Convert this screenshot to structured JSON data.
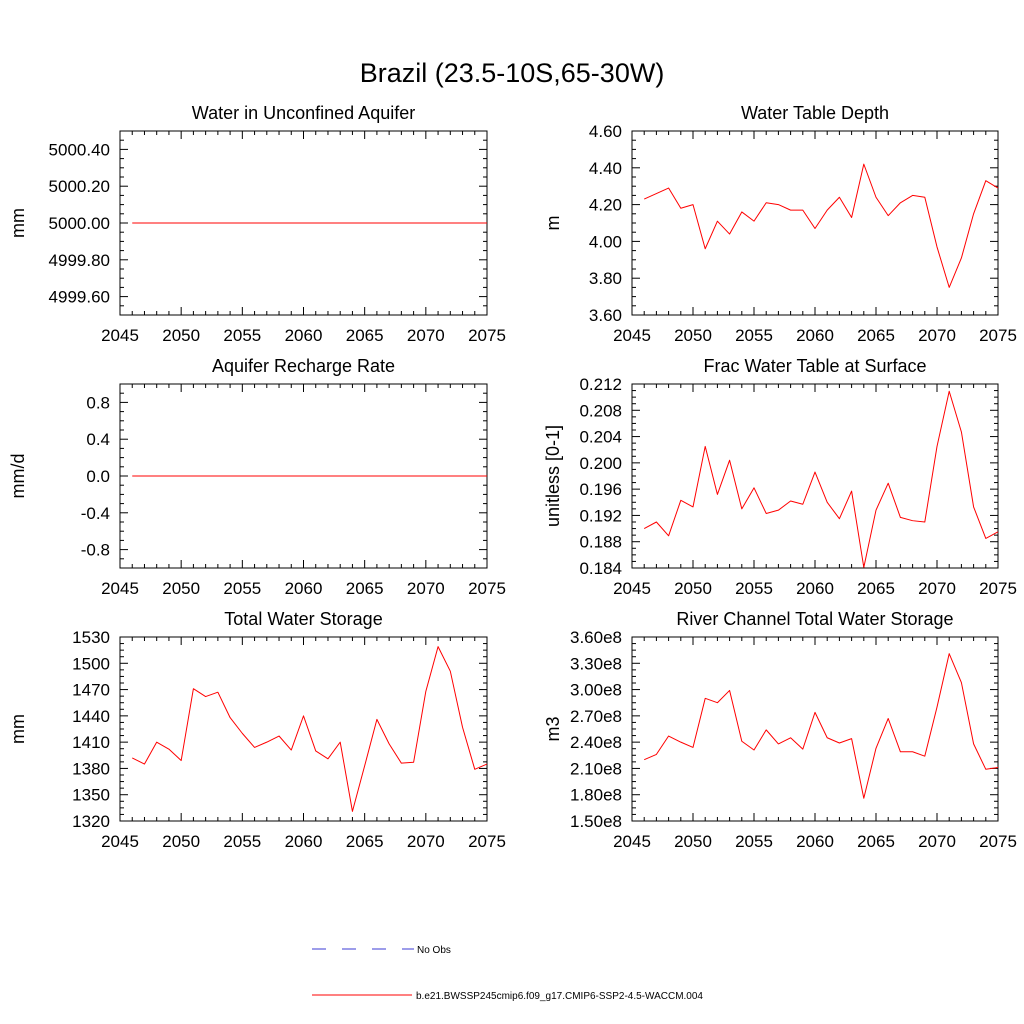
{
  "title": "Brazil (23.5-10S,65-30W)",
  "colors": {
    "model": "#ff0000",
    "obs": "#3b3bd6",
    "axis": "#000000"
  },
  "legend": {
    "entries": [
      {
        "label": "No Obs",
        "style": "dashed",
        "color": "#3b3bd6"
      },
      {
        "label": "b.e21.BWSSP245cmip6.f09_g17.CMIP6-SSP2-4.5-WACCM.004",
        "style": "solid",
        "color": "#ff0000"
      }
    ]
  },
  "chart_data": [
    {
      "type": "line",
      "title": "Water in Unconfined Aquifer",
      "xlabel": "",
      "ylabel": "mm",
      "xlim": [
        2045,
        2075
      ],
      "ylim": [
        4999.5,
        5000.5
      ],
      "xticks": [
        2045,
        2050,
        2055,
        2060,
        2065,
        2070,
        2075
      ],
      "xtick_labels": [
        "2045",
        "2050",
        "2055",
        "2060",
        "2065",
        "2070",
        "2075"
      ],
      "yticks": [
        4999.6,
        4999.8,
        5000.0,
        5000.2,
        5000.4
      ],
      "ytick_labels": [
        "4999.60",
        "4999.80",
        "5000.00",
        "5000.20",
        "5000.40"
      ],
      "series": [
        {
          "name": "b.e21.BWSSP245cmip6.f09_g17.CMIP6-SSP2-4.5-WACCM.004",
          "x": [
            2046,
            2075
          ],
          "y": [
            5000.0,
            5000.0
          ]
        }
      ]
    },
    {
      "type": "line",
      "title": "Water Table Depth",
      "xlabel": "",
      "ylabel": "m",
      "xlim": [
        2045,
        2075
      ],
      "ylim": [
        3.6,
        4.6
      ],
      "xticks": [
        2045,
        2050,
        2055,
        2060,
        2065,
        2070,
        2075
      ],
      "xtick_labels": [
        "2045",
        "2050",
        "2055",
        "2060",
        "2065",
        "2070",
        "2075"
      ],
      "yticks": [
        3.6,
        3.8,
        4.0,
        4.2,
        4.4,
        4.6
      ],
      "ytick_labels": [
        "3.60",
        "3.80",
        "4.00",
        "4.20",
        "4.40",
        "4.60"
      ],
      "series": [
        {
          "name": "b.e21.BWSSP245cmip6.f09_g17.CMIP6-SSP2-4.5-WACCM.004",
          "x": [
            2046,
            2047,
            2048,
            2049,
            2050,
            2051,
            2052,
            2053,
            2054,
            2055,
            2056,
            2057,
            2058,
            2059,
            2060,
            2061,
            2062,
            2063,
            2064,
            2065,
            2066,
            2067,
            2068,
            2069,
            2070,
            2071,
            2072,
            2073,
            2074,
            2075
          ],
          "y": [
            4.23,
            4.26,
            4.29,
            4.18,
            4.2,
            3.96,
            4.11,
            4.04,
            4.16,
            4.11,
            4.21,
            4.2,
            4.17,
            4.17,
            4.07,
            4.17,
            4.24,
            4.13,
            4.42,
            4.24,
            4.14,
            4.21,
            4.25,
            4.24,
            3.97,
            3.75,
            3.91,
            4.15,
            4.33,
            4.29
          ]
        }
      ]
    },
    {
      "type": "line",
      "title": "Aquifer Recharge Rate",
      "xlabel": "",
      "ylabel": "mm/d",
      "xlim": [
        2045,
        2075
      ],
      "ylim": [
        -1.0,
        1.0
      ],
      "xticks": [
        2045,
        2050,
        2055,
        2060,
        2065,
        2070,
        2075
      ],
      "xtick_labels": [
        "2045",
        "2050",
        "2055",
        "2060",
        "2065",
        "2070",
        "2075"
      ],
      "yticks": [
        -0.8,
        -0.4,
        0.0,
        0.4,
        0.8
      ],
      "ytick_labels": [
        "-0.8",
        "-0.4",
        "0.0",
        "0.4",
        "0.8"
      ],
      "series": [
        {
          "name": "b.e21.BWSSP245cmip6.f09_g17.CMIP6-SSP2-4.5-WACCM.004",
          "x": [
            2046,
            2075
          ],
          "y": [
            0.0,
            0.0
          ]
        }
      ]
    },
    {
      "type": "line",
      "title": "Frac Water Table at Surface",
      "xlabel": "",
      "ylabel": "unitless [0-1]",
      "xlim": [
        2045,
        2075
      ],
      "ylim": [
        0.184,
        0.212
      ],
      "xticks": [
        2045,
        2050,
        2055,
        2060,
        2065,
        2070,
        2075
      ],
      "xtick_labels": [
        "2045",
        "2050",
        "2055",
        "2060",
        "2065",
        "2070",
        "2075"
      ],
      "yticks": [
        0.184,
        0.188,
        0.192,
        0.196,
        0.2,
        0.204,
        0.208,
        0.212
      ],
      "ytick_labels": [
        "0.184",
        "0.188",
        "0.192",
        "0.196",
        "0.200",
        "0.204",
        "0.208",
        "0.212"
      ],
      "series": [
        {
          "name": "b.e21.BWSSP245cmip6.f09_g17.CMIP6-SSP2-4.5-WACCM.004",
          "x": [
            2046,
            2047,
            2048,
            2049,
            2050,
            2051,
            2052,
            2053,
            2054,
            2055,
            2056,
            2057,
            2058,
            2059,
            2060,
            2061,
            2062,
            2063,
            2064,
            2065,
            2066,
            2067,
            2068,
            2069,
            2070,
            2071,
            2072,
            2073,
            2074,
            2075
          ],
          "y": [
            0.19,
            0.191,
            0.1889,
            0.1943,
            0.1933,
            0.2025,
            0.1952,
            0.2004,
            0.193,
            0.1962,
            0.1923,
            0.1928,
            0.1942,
            0.1937,
            0.1986,
            0.194,
            0.1915,
            0.1957,
            0.1841,
            0.1928,
            0.1969,
            0.1917,
            0.1912,
            0.191,
            0.2025,
            0.2109,
            0.2047,
            0.1933,
            0.1885,
            0.1895
          ]
        }
      ]
    },
    {
      "type": "line",
      "title": "Total Water Storage",
      "xlabel": "",
      "ylabel": "mm",
      "xlim": [
        2045,
        2075
      ],
      "ylim": [
        1320,
        1530
      ],
      "xticks": [
        2045,
        2050,
        2055,
        2060,
        2065,
        2070,
        2075
      ],
      "xtick_labels": [
        "2045",
        "2050",
        "2055",
        "2060",
        "2065",
        "2070",
        "2075"
      ],
      "yticks": [
        1320,
        1350,
        1380,
        1410,
        1440,
        1470,
        1500,
        1530
      ],
      "ytick_labels": [
        "1320",
        "1350",
        "1380",
        "1410",
        "1440",
        "1470",
        "1500",
        "1530"
      ],
      "series": [
        {
          "name": "b.e21.BWSSP245cmip6.f09_g17.CMIP6-SSP2-4.5-WACCM.004",
          "x": [
            2046,
            2047,
            2048,
            2049,
            2050,
            2051,
            2052,
            2053,
            2054,
            2055,
            2056,
            2057,
            2058,
            2059,
            2060,
            2061,
            2062,
            2063,
            2064,
            2065,
            2066,
            2067,
            2068,
            2069,
            2070,
            2071,
            2072,
            2073,
            2074,
            2075
          ],
          "y": [
            1392,
            1385,
            1410,
            1402,
            1389,
            1471,
            1462,
            1467,
            1438,
            1420,
            1404,
            1410,
            1417,
            1401,
            1440,
            1400,
            1391,
            1410,
            1331,
            1383,
            1436,
            1408,
            1386,
            1387,
            1468,
            1519,
            1491,
            1427,
            1379,
            1385
          ]
        }
      ]
    },
    {
      "type": "line",
      "title": "River Channel Total Water Storage",
      "xlabel": "",
      "ylabel": "m3",
      "xlim": [
        2045,
        2075
      ],
      "ylim": [
        150000000,
        360000000
      ],
      "xticks": [
        2045,
        2050,
        2055,
        2060,
        2065,
        2070,
        2075
      ],
      "xtick_labels": [
        "2045",
        "2050",
        "2055",
        "2060",
        "2065",
        "2070",
        "2075"
      ],
      "yticks": [
        150000000,
        180000000,
        210000000,
        240000000,
        270000000,
        300000000,
        330000000,
        360000000
      ],
      "ytick_labels": [
        "1.50e8",
        "1.80e8",
        "2.10e8",
        "2.40e8",
        "2.70e8",
        "3.00e8",
        "3.30e8",
        "3.60e8"
      ],
      "series": [
        {
          "name": "b.e21.BWSSP245cmip6.f09_g17.CMIP6-SSP2-4.5-WACCM.004",
          "x": [
            2046,
            2047,
            2048,
            2049,
            2050,
            2051,
            2052,
            2053,
            2054,
            2055,
            2056,
            2057,
            2058,
            2059,
            2060,
            2061,
            2062,
            2063,
            2064,
            2065,
            2066,
            2067,
            2068,
            2069,
            2070,
            2071,
            2072,
            2073,
            2074,
            2075
          ],
          "y": [
            220000000,
            226000000,
            247000000,
            240000000,
            234000000,
            290000000,
            285000000,
            299000000,
            241000000,
            231000000,
            254000000,
            238000000,
            245000000,
            232000000,
            274000000,
            245000000,
            239000000,
            244000000,
            176000000,
            233000000,
            267000000,
            229000000,
            229000000,
            224000000,
            280000000,
            341000000,
            308000000,
            238000000,
            209000000,
            211000000
          ]
        }
      ]
    }
  ]
}
